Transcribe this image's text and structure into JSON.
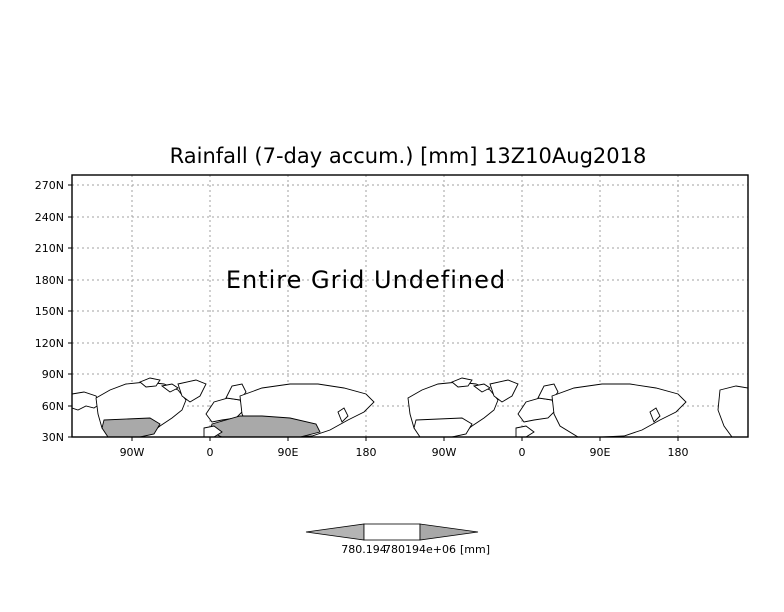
{
  "map": {
    "title": "Rainfall (7-day accum.) [mm] 13Z10Aug2018",
    "message": "Entire Grid Undefined",
    "y_ticks": [
      "270N",
      "240N",
      "210N",
      "180N",
      "150N",
      "120N",
      "90N",
      "60N",
      "30N"
    ],
    "x_ticks": [
      "90W",
      "0",
      "90E",
      "180",
      "90W",
      "0",
      "90E",
      "180"
    ],
    "colors": {
      "land": "#ffffff",
      "shade": "#a9a9a9",
      "grid": "#a0a0a0",
      "border": "#000000"
    }
  },
  "colorbar": {
    "label_left": "780.194",
    "label_right": "780194e+06",
    "units": "[mm]",
    "colors": {
      "left": "#b4b4b4",
      "middle": "#ffffff",
      "right": "#a8a8a8"
    }
  }
}
